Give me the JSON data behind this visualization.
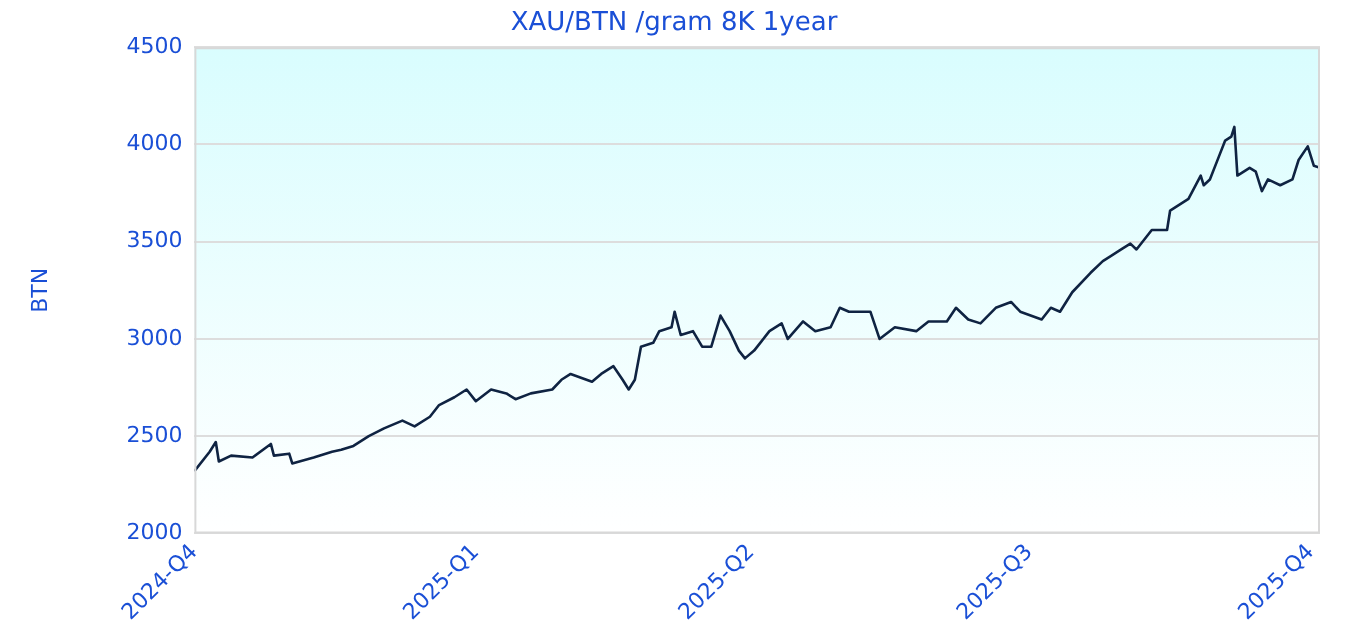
{
  "chart_data": {
    "type": "line",
    "title": "XAU/BTN /gram 8K 1year",
    "ylabel": "BTN",
    "x": [
      "2024-10-01",
      "2024-10-06",
      "2024-10-08",
      "2024-10-09",
      "2024-10-13",
      "2024-10-20",
      "2024-10-26",
      "2024-10-27",
      "2024-11-01",
      "2024-11-02",
      "2024-11-09",
      "2024-11-15",
      "2024-11-18",
      "2024-11-22",
      "2024-11-27",
      "2024-12-02",
      "2024-12-08",
      "2024-12-12",
      "2024-12-17",
      "2024-12-20",
      "2024-12-25",
      "2024-12-29",
      "2025-01-01",
      "2025-01-06",
      "2025-01-11",
      "2025-01-14",
      "2025-01-19",
      "2025-01-26",
      "2025-01-29",
      "2025-02-01",
      "2025-02-08",
      "2025-02-11",
      "2025-02-15",
      "2025-02-18",
      "2025-02-20",
      "2025-02-22",
      "2025-02-24",
      "2025-02-28",
      "2025-03-02",
      "2025-03-06",
      "2025-03-07",
      "2025-03-09",
      "2025-03-13",
      "2025-03-16",
      "2025-03-19",
      "2025-03-22",
      "2025-03-25",
      "2025-03-28",
      "2025-03-30",
      "2025-04-02",
      "2025-04-07",
      "2025-04-11",
      "2025-04-13",
      "2025-04-18",
      "2025-04-22",
      "2025-04-27",
      "2025-04-30",
      "2025-05-03",
      "2025-05-10",
      "2025-05-13",
      "2025-05-18",
      "2025-05-25",
      "2025-05-29",
      "2025-06-04",
      "2025-06-07",
      "2025-06-11",
      "2025-06-15",
      "2025-06-20",
      "2025-06-25",
      "2025-06-28",
      "2025-07-05",
      "2025-07-08",
      "2025-07-11",
      "2025-07-15",
      "2025-07-21",
      "2025-07-25",
      "2025-07-31",
      "2025-08-03",
      "2025-08-05",
      "2025-08-10",
      "2025-08-15",
      "2025-08-16",
      "2025-08-22",
      "2025-08-26",
      "2025-08-27",
      "2025-08-29",
      "2025-09-01",
      "2025-09-03",
      "2025-09-05",
      "2025-09-06",
      "2025-09-07",
      "2025-09-11",
      "2025-09-13",
      "2025-09-15",
      "2025-09-17",
      "2025-09-21",
      "2025-09-25",
      "2025-09-27",
      "2025-09-30",
      "2025-10-02",
      "2025-10-04"
    ],
    "series": [
      {
        "color": "#0f2342",
        "values": [
          2320,
          2420,
          2470,
          2370,
          2400,
          2390,
          2460,
          2400,
          2410,
          2360,
          2390,
          2420,
          2430,
          2450,
          2500,
          2540,
          2580,
          2550,
          2600,
          2660,
          2700,
          2740,
          2680,
          2740,
          2720,
          2690,
          2720,
          2740,
          2790,
          2820,
          2780,
          2820,
          2860,
          2790,
          2740,
          2790,
          2960,
          2980,
          3040,
          3060,
          3140,
          3020,
          3040,
          2960,
          2960,
          3120,
          3040,
          2940,
          2900,
          2940,
          3040,
          3080,
          3000,
          3090,
          3040,
          3060,
          3160,
          3140,
          3140,
          3000,
          3060,
          3040,
          3090,
          3090,
          3160,
          3100,
          3080,
          3160,
          3190,
          3140,
          3100,
          3160,
          3140,
          3240,
          3340,
          3400,
          3460,
          3490,
          3460,
          3560,
          3560,
          3660,
          3720,
          3840,
          3790,
          3820,
          3940,
          4020,
          4040,
          4090,
          3840,
          3880,
          3860,
          3760,
          3820,
          3790,
          3820,
          3920,
          3990,
          3890,
          3880
        ]
      }
    ],
    "xlim": [
      "2024-10-01",
      "2025-10-04"
    ],
    "xticks": [
      {
        "value": "2024-10-01",
        "label": "2024-Q4"
      },
      {
        "value": "2025-01-01",
        "label": "2025-Q1"
      },
      {
        "value": "2025-04-01",
        "label": "2025-Q2"
      },
      {
        "value": "2025-07-01",
        "label": "2025-Q3"
      },
      {
        "value": "2025-10-01",
        "label": "2025-Q4"
      }
    ],
    "ylim": [
      2000,
      4500
    ],
    "yticks": [
      2000,
      2500,
      3000,
      3500,
      4000,
      4500
    ],
    "grid": "y",
    "marker": "none",
    "line_style": "solid"
  }
}
